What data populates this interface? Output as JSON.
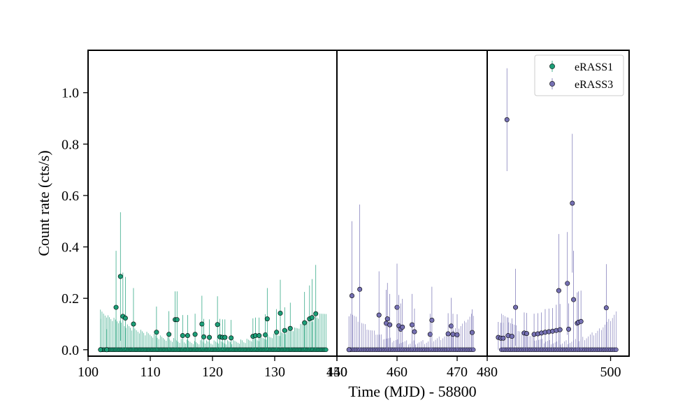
{
  "chart_data": {
    "type": "scatter",
    "title": "",
    "xlabel": "Time (MJD) - 58800",
    "ylabel": "Count rate (cts/s)",
    "ylim": [
      -0.025,
      1.165
    ],
    "yticks": [
      0.0,
      0.2,
      0.4,
      0.6,
      0.8,
      1.0
    ],
    "ytick_labels": [
      "0.0",
      "0.2",
      "0.4",
      "0.6",
      "0.8",
      "1.0"
    ],
    "grid": false,
    "legend": {
      "placement": "top-right",
      "entries": [
        {
          "label": "eRASS1",
          "series": "eRASS1"
        },
        {
          "label": "eRASS3",
          "series": "eRASS3"
        }
      ]
    },
    "panels": [
      {
        "xlim": [
          100,
          140
        ],
        "xticks": [
          100,
          110,
          120,
          130,
          140
        ],
        "xtick_labels": [
          "100",
          "110",
          "120",
          "130",
          "140"
        ],
        "series": "eRASS1",
        "color": "#1b9e77",
        "points": [
          {
            "x": 102.0,
            "y": 0.0,
            "err": 0.12
          },
          {
            "x": 103.0,
            "y": 0.0,
            "err": 0.08
          },
          {
            "x": 104.5,
            "y": 0.165,
            "err": 0.22
          },
          {
            "x": 105.2,
            "y": 0.285,
            "err": 0.25
          },
          {
            "x": 105.6,
            "y": 0.13,
            "err": 0.17
          },
          {
            "x": 106.0,
            "y": 0.123,
            "err": 0.16
          },
          {
            "x": 107.3,
            "y": 0.1,
            "err": 0.14
          },
          {
            "x": 111.0,
            "y": 0.068,
            "err": 0.1
          },
          {
            "x": 113.0,
            "y": 0.06,
            "err": 0.09
          },
          {
            "x": 114.0,
            "y": 0.117,
            "err": 0.11
          },
          {
            "x": 114.3,
            "y": 0.117,
            "err": 0.11
          },
          {
            "x": 115.2,
            "y": 0.055,
            "err": 0.08
          },
          {
            "x": 116.0,
            "y": 0.055,
            "err": 0.08
          },
          {
            "x": 117.2,
            "y": 0.06,
            "err": 0.08
          },
          {
            "x": 118.3,
            "y": 0.1,
            "err": 0.11
          },
          {
            "x": 118.6,
            "y": 0.05,
            "err": 0.07
          },
          {
            "x": 119.5,
            "y": 0.048,
            "err": 0.07
          },
          {
            "x": 120.8,
            "y": 0.098,
            "err": 0.11
          },
          {
            "x": 121.2,
            "y": 0.05,
            "err": 0.07
          },
          {
            "x": 121.6,
            "y": 0.048,
            "err": 0.07
          },
          {
            "x": 122.0,
            "y": 0.048,
            "err": 0.07
          },
          {
            "x": 123.0,
            "y": 0.046,
            "err": 0.07
          },
          {
            "x": 126.5,
            "y": 0.052,
            "err": 0.07
          },
          {
            "x": 126.9,
            "y": 0.055,
            "err": 0.07
          },
          {
            "x": 127.5,
            "y": 0.055,
            "err": 0.07
          },
          {
            "x": 128.5,
            "y": 0.058,
            "err": 0.08
          },
          {
            "x": 128.8,
            "y": 0.12,
            "err": 0.12
          },
          {
            "x": 130.3,
            "y": 0.068,
            "err": 0.09
          },
          {
            "x": 130.9,
            "y": 0.142,
            "err": 0.13
          },
          {
            "x": 131.6,
            "y": 0.075,
            "err": 0.09
          },
          {
            "x": 132.5,
            "y": 0.083,
            "err": 0.1
          },
          {
            "x": 134.8,
            "y": 0.105,
            "err": 0.12
          },
          {
            "x": 135.6,
            "y": 0.12,
            "err": 0.13
          },
          {
            "x": 136.0,
            "y": 0.125,
            "err": 0.15
          },
          {
            "x": 136.6,
            "y": 0.14,
            "err": 0.19
          }
        ]
      },
      {
        "xlim": [
          450,
          475
        ],
        "xticks": [
          450,
          460,
          470
        ],
        "xtick_labels": [
          "450",
          "460",
          "470"
        ],
        "series": "eRASS3",
        "color": "#7570b3",
        "points": [
          {
            "x": 452.0,
            "y": 0.0,
            "err": 0.13
          },
          {
            "x": 452.5,
            "y": 0.21,
            "err": 0.29
          },
          {
            "x": 453.8,
            "y": 0.235,
            "err": 0.33
          },
          {
            "x": 457.0,
            "y": 0.135,
            "err": 0.17
          },
          {
            "x": 458.2,
            "y": 0.103,
            "err": 0.13
          },
          {
            "x": 458.4,
            "y": 0.12,
            "err": 0.14
          },
          {
            "x": 458.8,
            "y": 0.097,
            "err": 0.12
          },
          {
            "x": 460.0,
            "y": 0.165,
            "err": 0.17
          },
          {
            "x": 460.3,
            "y": 0.093,
            "err": 0.12
          },
          {
            "x": 460.6,
            "y": 0.08,
            "err": 0.1
          },
          {
            "x": 460.9,
            "y": 0.088,
            "err": 0.11
          },
          {
            "x": 462.5,
            "y": 0.097,
            "err": 0.12
          },
          {
            "x": 462.9,
            "y": 0.07,
            "err": 0.09
          },
          {
            "x": 465.5,
            "y": 0.06,
            "err": 0.08
          },
          {
            "x": 465.8,
            "y": 0.115,
            "err": 0.13
          },
          {
            "x": 468.5,
            "y": 0.062,
            "err": 0.08
          },
          {
            "x": 469.0,
            "y": 0.092,
            "err": 0.11
          },
          {
            "x": 469.3,
            "y": 0.06,
            "err": 0.08
          },
          {
            "x": 470.0,
            "y": 0.058,
            "err": 0.08
          },
          {
            "x": 472.5,
            "y": 0.067,
            "err": 0.09
          }
        ]
      },
      {
        "xlim": [
          480,
          503
        ],
        "xticks": [
          480,
          500
        ],
        "xtick_labels": [
          "480",
          "500"
        ],
        "series": "eRASS3",
        "color": "#7570b3",
        "points": [
          {
            "x": 481.8,
            "y": 0.048,
            "err": 0.06
          },
          {
            "x": 482.2,
            "y": 0.045,
            "err": 0.06
          },
          {
            "x": 482.6,
            "y": 0.045,
            "err": 0.06
          },
          {
            "x": 483.2,
            "y": 0.895,
            "err": 0.2
          },
          {
            "x": 483.4,
            "y": 0.055,
            "err": 0.07
          },
          {
            "x": 484.0,
            "y": 0.052,
            "err": 0.07
          },
          {
            "x": 484.6,
            "y": 0.165,
            "err": 0.15
          },
          {
            "x": 486.0,
            "y": 0.065,
            "err": 0.08
          },
          {
            "x": 486.4,
            "y": 0.063,
            "err": 0.08
          },
          {
            "x": 487.6,
            "y": 0.06,
            "err": 0.08
          },
          {
            "x": 488.2,
            "y": 0.062,
            "err": 0.08
          },
          {
            "x": 488.8,
            "y": 0.065,
            "err": 0.08
          },
          {
            "x": 489.4,
            "y": 0.068,
            "err": 0.09
          },
          {
            "x": 490.0,
            "y": 0.07,
            "err": 0.09
          },
          {
            "x": 490.6,
            "y": 0.072,
            "err": 0.09
          },
          {
            "x": 491.2,
            "y": 0.075,
            "err": 0.1
          },
          {
            "x": 491.6,
            "y": 0.23,
            "err": 0.22
          },
          {
            "x": 491.8,
            "y": 0.078,
            "err": 0.1
          },
          {
            "x": 493.0,
            "y": 0.258,
            "err": 0.2
          },
          {
            "x": 493.2,
            "y": 0.08,
            "err": 0.1
          },
          {
            "x": 493.8,
            "y": 0.57,
            "err": 0.27
          },
          {
            "x": 494.0,
            "y": 0.195,
            "err": 0.19
          },
          {
            "x": 494.6,
            "y": 0.103,
            "err": 0.12
          },
          {
            "x": 494.8,
            "y": 0.107,
            "err": 0.12
          },
          {
            "x": 495.2,
            "y": 0.11,
            "err": 0.12
          },
          {
            "x": 499.3,
            "y": 0.163,
            "err": 0.17
          }
        ]
      }
    ]
  }
}
